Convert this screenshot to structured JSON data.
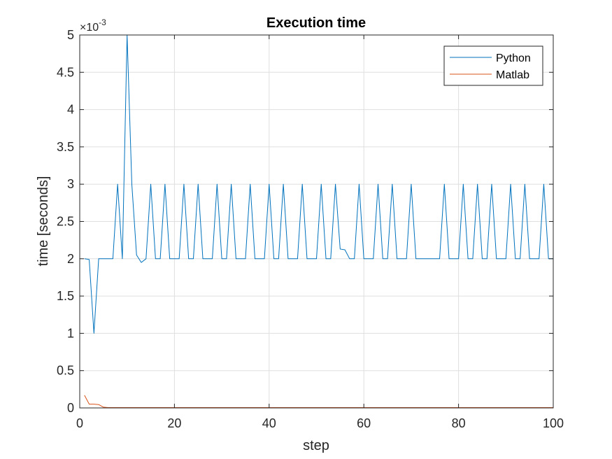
{
  "chart_data": {
    "type": "line",
    "title": "Execution time",
    "xlabel": "step",
    "ylabel": "time [seconds]",
    "xlim": [
      0,
      100
    ],
    "ylim": [
      0,
      0.005
    ],
    "y_exponent_base": "×10",
    "y_exponent_power": "-3",
    "x_ticks": [
      0,
      20,
      40,
      60,
      80,
      100
    ],
    "x_tick_labels": [
      "0",
      "20",
      "40",
      "60",
      "80",
      "100"
    ],
    "y_ticks": [
      0,
      0.0005,
      0.001,
      0.0015,
      0.002,
      0.0025,
      0.003,
      0.0035,
      0.004,
      0.0045,
      0.005
    ],
    "y_tick_labels": [
      "0",
      "0.5",
      "1",
      "1.5",
      "2",
      "2.5",
      "3",
      "3.5",
      "4",
      "4.5",
      "5"
    ],
    "grid": true,
    "legend_position": "top-right",
    "series": [
      {
        "name": "Python",
        "color": "#0072BD",
        "points": [
          [
            1,
            0.002
          ],
          [
            2,
            0.00199
          ],
          [
            3,
            0.001
          ],
          [
            4,
            0.002
          ],
          [
            5,
            0.002
          ],
          [
            6,
            0.002
          ],
          [
            7,
            0.002
          ],
          [
            8,
            0.003
          ],
          [
            9,
            0.002
          ],
          [
            10,
            0.005
          ],
          [
            11,
            0.003
          ],
          [
            12,
            0.00205
          ],
          [
            13,
            0.00195
          ],
          [
            14,
            0.002
          ],
          [
            15,
            0.003
          ],
          [
            16,
            0.002
          ],
          [
            17,
            0.002
          ],
          [
            18,
            0.003
          ],
          [
            19,
            0.002
          ],
          [
            20,
            0.002
          ],
          [
            21,
            0.002
          ],
          [
            22,
            0.003
          ],
          [
            23,
            0.002
          ],
          [
            24,
            0.002
          ],
          [
            25,
            0.003
          ],
          [
            26,
            0.002
          ],
          [
            27,
            0.002
          ],
          [
            28,
            0.002
          ],
          [
            29,
            0.003
          ],
          [
            30,
            0.002
          ],
          [
            31,
            0.002
          ],
          [
            32,
            0.003
          ],
          [
            33,
            0.002
          ],
          [
            34,
            0.002
          ],
          [
            35,
            0.002
          ],
          [
            36,
            0.003
          ],
          [
            37,
            0.002
          ],
          [
            38,
            0.002
          ],
          [
            39,
            0.002
          ],
          [
            40,
            0.003
          ],
          [
            41,
            0.002
          ],
          [
            42,
            0.002
          ],
          [
            43,
            0.003
          ],
          [
            44,
            0.002
          ],
          [
            45,
            0.002
          ],
          [
            46,
            0.002
          ],
          [
            47,
            0.003
          ],
          [
            48,
            0.002
          ],
          [
            49,
            0.002
          ],
          [
            50,
            0.002
          ],
          [
            51,
            0.003
          ],
          [
            52,
            0.002
          ],
          [
            53,
            0.002
          ],
          [
            54,
            0.003
          ],
          [
            55,
            0.00213
          ],
          [
            56,
            0.00212
          ],
          [
            57,
            0.002
          ],
          [
            58,
            0.002
          ],
          [
            59,
            0.003
          ],
          [
            60,
            0.002
          ],
          [
            61,
            0.002
          ],
          [
            62,
            0.002
          ],
          [
            63,
            0.003
          ],
          [
            64,
            0.002
          ],
          [
            65,
            0.002
          ],
          [
            66,
            0.003
          ],
          [
            67,
            0.002
          ],
          [
            68,
            0.002
          ],
          [
            69,
            0.002
          ],
          [
            70,
            0.003
          ],
          [
            71,
            0.002
          ],
          [
            72,
            0.002
          ],
          [
            73,
            0.002
          ],
          [
            74,
            0.002
          ],
          [
            75,
            0.002
          ],
          [
            76,
            0.002
          ],
          [
            77,
            0.003
          ],
          [
            78,
            0.002
          ],
          [
            79,
            0.002
          ],
          [
            80,
            0.002
          ],
          [
            81,
            0.003
          ],
          [
            82,
            0.002
          ],
          [
            83,
            0.002
          ],
          [
            84,
            0.003
          ],
          [
            85,
            0.002
          ],
          [
            86,
            0.002
          ],
          [
            87,
            0.003
          ],
          [
            88,
            0.002
          ],
          [
            89,
            0.002
          ],
          [
            90,
            0.002
          ],
          [
            91,
            0.003
          ],
          [
            92,
            0.002
          ],
          [
            93,
            0.002
          ],
          [
            94,
            0.003
          ],
          [
            95,
            0.002
          ],
          [
            96,
            0.002
          ],
          [
            97,
            0.002
          ],
          [
            98,
            0.003
          ],
          [
            99,
            0.002
          ],
          [
            100,
            0.002
          ]
        ]
      },
      {
        "name": "Matlab",
        "color": "#D95319",
        "points": [
          [
            1,
            0.00017
          ],
          [
            2,
            5e-05
          ],
          [
            3,
            5e-05
          ],
          [
            4,
            4.5e-05
          ],
          [
            5,
            1e-05
          ],
          [
            6,
            5e-06
          ],
          [
            7,
            5e-06
          ],
          [
            8,
            5e-06
          ],
          [
            10,
            5e-06
          ],
          [
            15,
            5e-06
          ],
          [
            20,
            5e-06
          ],
          [
            30,
            5e-06
          ],
          [
            40,
            5e-06
          ],
          [
            50,
            5e-06
          ],
          [
            60,
            5e-06
          ],
          [
            70,
            5e-06
          ],
          [
            80,
            5e-06
          ],
          [
            90,
            5e-06
          ],
          [
            100,
            5e-06
          ]
        ]
      }
    ]
  }
}
